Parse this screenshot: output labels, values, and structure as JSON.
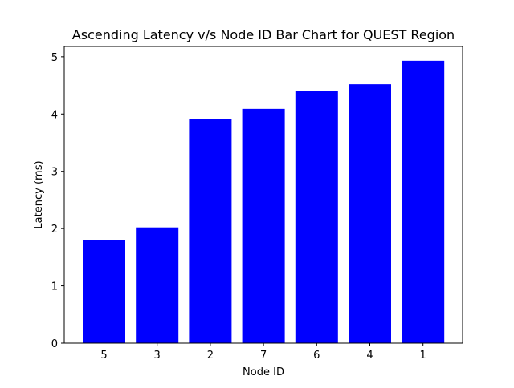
{
  "chart_data": {
    "type": "bar",
    "title": "Ascending Latency v/s Node ID Bar Chart for QUEST Region",
    "xlabel": "Node ID",
    "ylabel": "Latency (ms)",
    "categories": [
      "5",
      "3",
      "2",
      "7",
      "6",
      "4",
      "1"
    ],
    "values": [
      1.8,
      2.02,
      3.91,
      4.09,
      4.41,
      4.52,
      4.93
    ],
    "ylim": [
      0,
      5.18
    ],
    "yticks": [
      0,
      1,
      2,
      3,
      4,
      5
    ],
    "bar_color": "#0000ff",
    "grid": false,
    "legend": "none"
  }
}
